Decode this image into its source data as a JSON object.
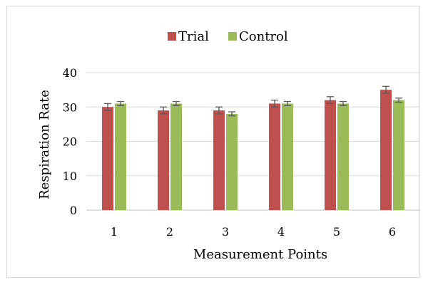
{
  "chart_data": {
    "type": "bar",
    "title": "",
    "xlabel": "Measurement Points",
    "ylabel": "Respiration Rate",
    "categories": [
      "1",
      "2",
      "3",
      "4",
      "5",
      "6"
    ],
    "series": [
      {
        "name": "Trial",
        "color": "#c0504d",
        "values": [
          30,
          29,
          29,
          31,
          32,
          35
        ],
        "error": [
          1,
          1,
          1,
          1,
          1,
          1
        ]
      },
      {
        "name": "Control",
        "color": "#9bbb59",
        "values": [
          31,
          31,
          28,
          31,
          31,
          32
        ],
        "error": [
          0.6,
          0.6,
          0.6,
          0.6,
          0.6,
          0.6
        ]
      }
    ],
    "ylim": [
      0,
      40
    ],
    "yticks": [
      0,
      10,
      20,
      30,
      40
    ],
    "grid": true,
    "legend": "top"
  }
}
